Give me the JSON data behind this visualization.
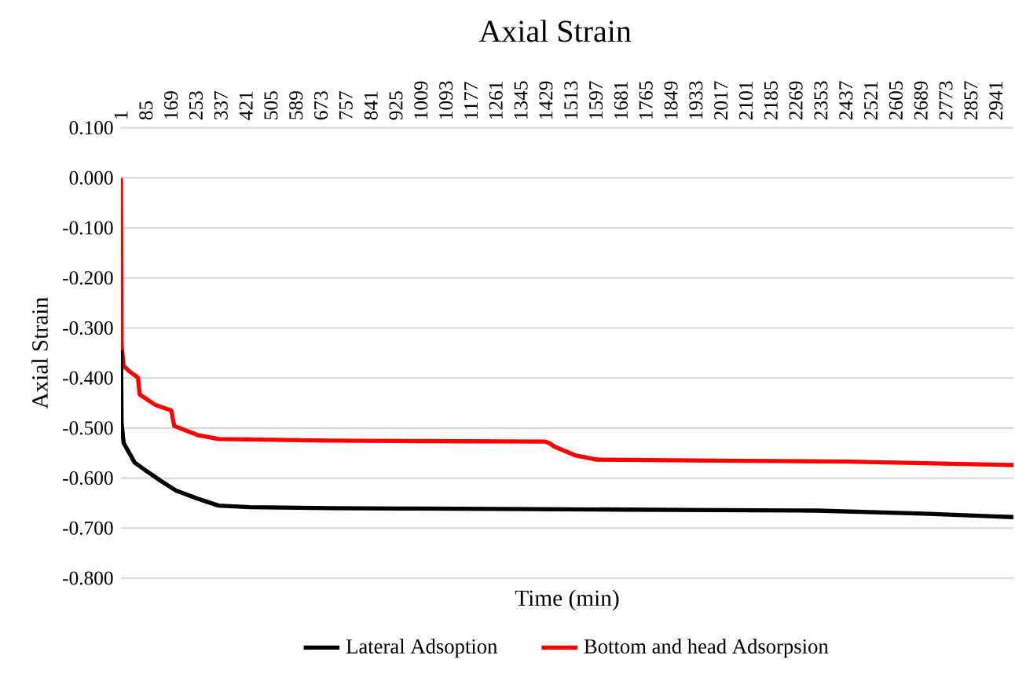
{
  "chart_data": {
    "type": "line",
    "title": "Axial Strain",
    "xlabel": "Time (min)",
    "ylabel": "Axial Strain",
    "xlim": [
      1,
      3000
    ],
    "xticks": [
      1,
      85,
      169,
      253,
      337,
      421,
      505,
      589,
      673,
      757,
      841,
      925,
      1009,
      1093,
      1177,
      1261,
      1345,
      1429,
      1513,
      1597,
      1681,
      1765,
      1849,
      1933,
      2017,
      2101,
      2185,
      2269,
      2353,
      2437,
      2521,
      2605,
      2689,
      2773,
      2857,
      2941
    ],
    "ylim": [
      -0.8,
      0.1
    ],
    "yticks": [
      {
        "value": 0.1,
        "label": "0.100"
      },
      {
        "value": 0.0,
        "label": "0.000"
      },
      {
        "value": -0.1,
        "label": "-0.100"
      },
      {
        "value": -0.2,
        "label": "-0.200"
      },
      {
        "value": -0.3,
        "label": "-0.300"
      },
      {
        "value": -0.4,
        "label": "-0.400"
      },
      {
        "value": -0.5,
        "label": "-0.500"
      },
      {
        "value": -0.6,
        "label": "-0.600"
      },
      {
        "value": -0.7,
        "label": "-0.700"
      },
      {
        "value": -0.8,
        "label": "-0.800"
      }
    ],
    "grid": "y",
    "legend": "bottom",
    "marker": "none",
    "line_style": "solid",
    "series": [
      {
        "name": "Lateral Adsoption",
        "color": "#000000",
        "x": [
          1,
          3,
          10,
          47,
          82,
          133,
          186,
          258,
          329,
          435,
          700,
          1000,
          1390,
          1700,
          2000,
          2340,
          2700,
          3000
        ],
        "values": [
          -0.344,
          -0.49,
          -0.53,
          -0.569,
          -0.584,
          -0.605,
          -0.625,
          -0.641,
          -0.655,
          -0.658,
          -0.66,
          -0.661,
          -0.662,
          -0.663,
          -0.664,
          -0.665,
          -0.671,
          -0.678
        ]
      },
      {
        "name": "Bottom and head Adsorpsion",
        "color": "#ff0000",
        "x": [
          1,
          3,
          10,
          28,
          58,
          64,
          117,
          170,
          180,
          258,
          329,
          700,
          1000,
          1425,
          1440,
          1457,
          1530,
          1600,
          2000,
          2447,
          3000
        ],
        "values": [
          0.0,
          -0.334,
          -0.376,
          -0.386,
          -0.399,
          -0.433,
          -0.454,
          -0.465,
          -0.496,
          -0.514,
          -0.522,
          -0.525,
          -0.526,
          -0.527,
          -0.53,
          -0.537,
          -0.555,
          -0.563,
          -0.565,
          -0.567,
          -0.574
        ]
      }
    ]
  }
}
